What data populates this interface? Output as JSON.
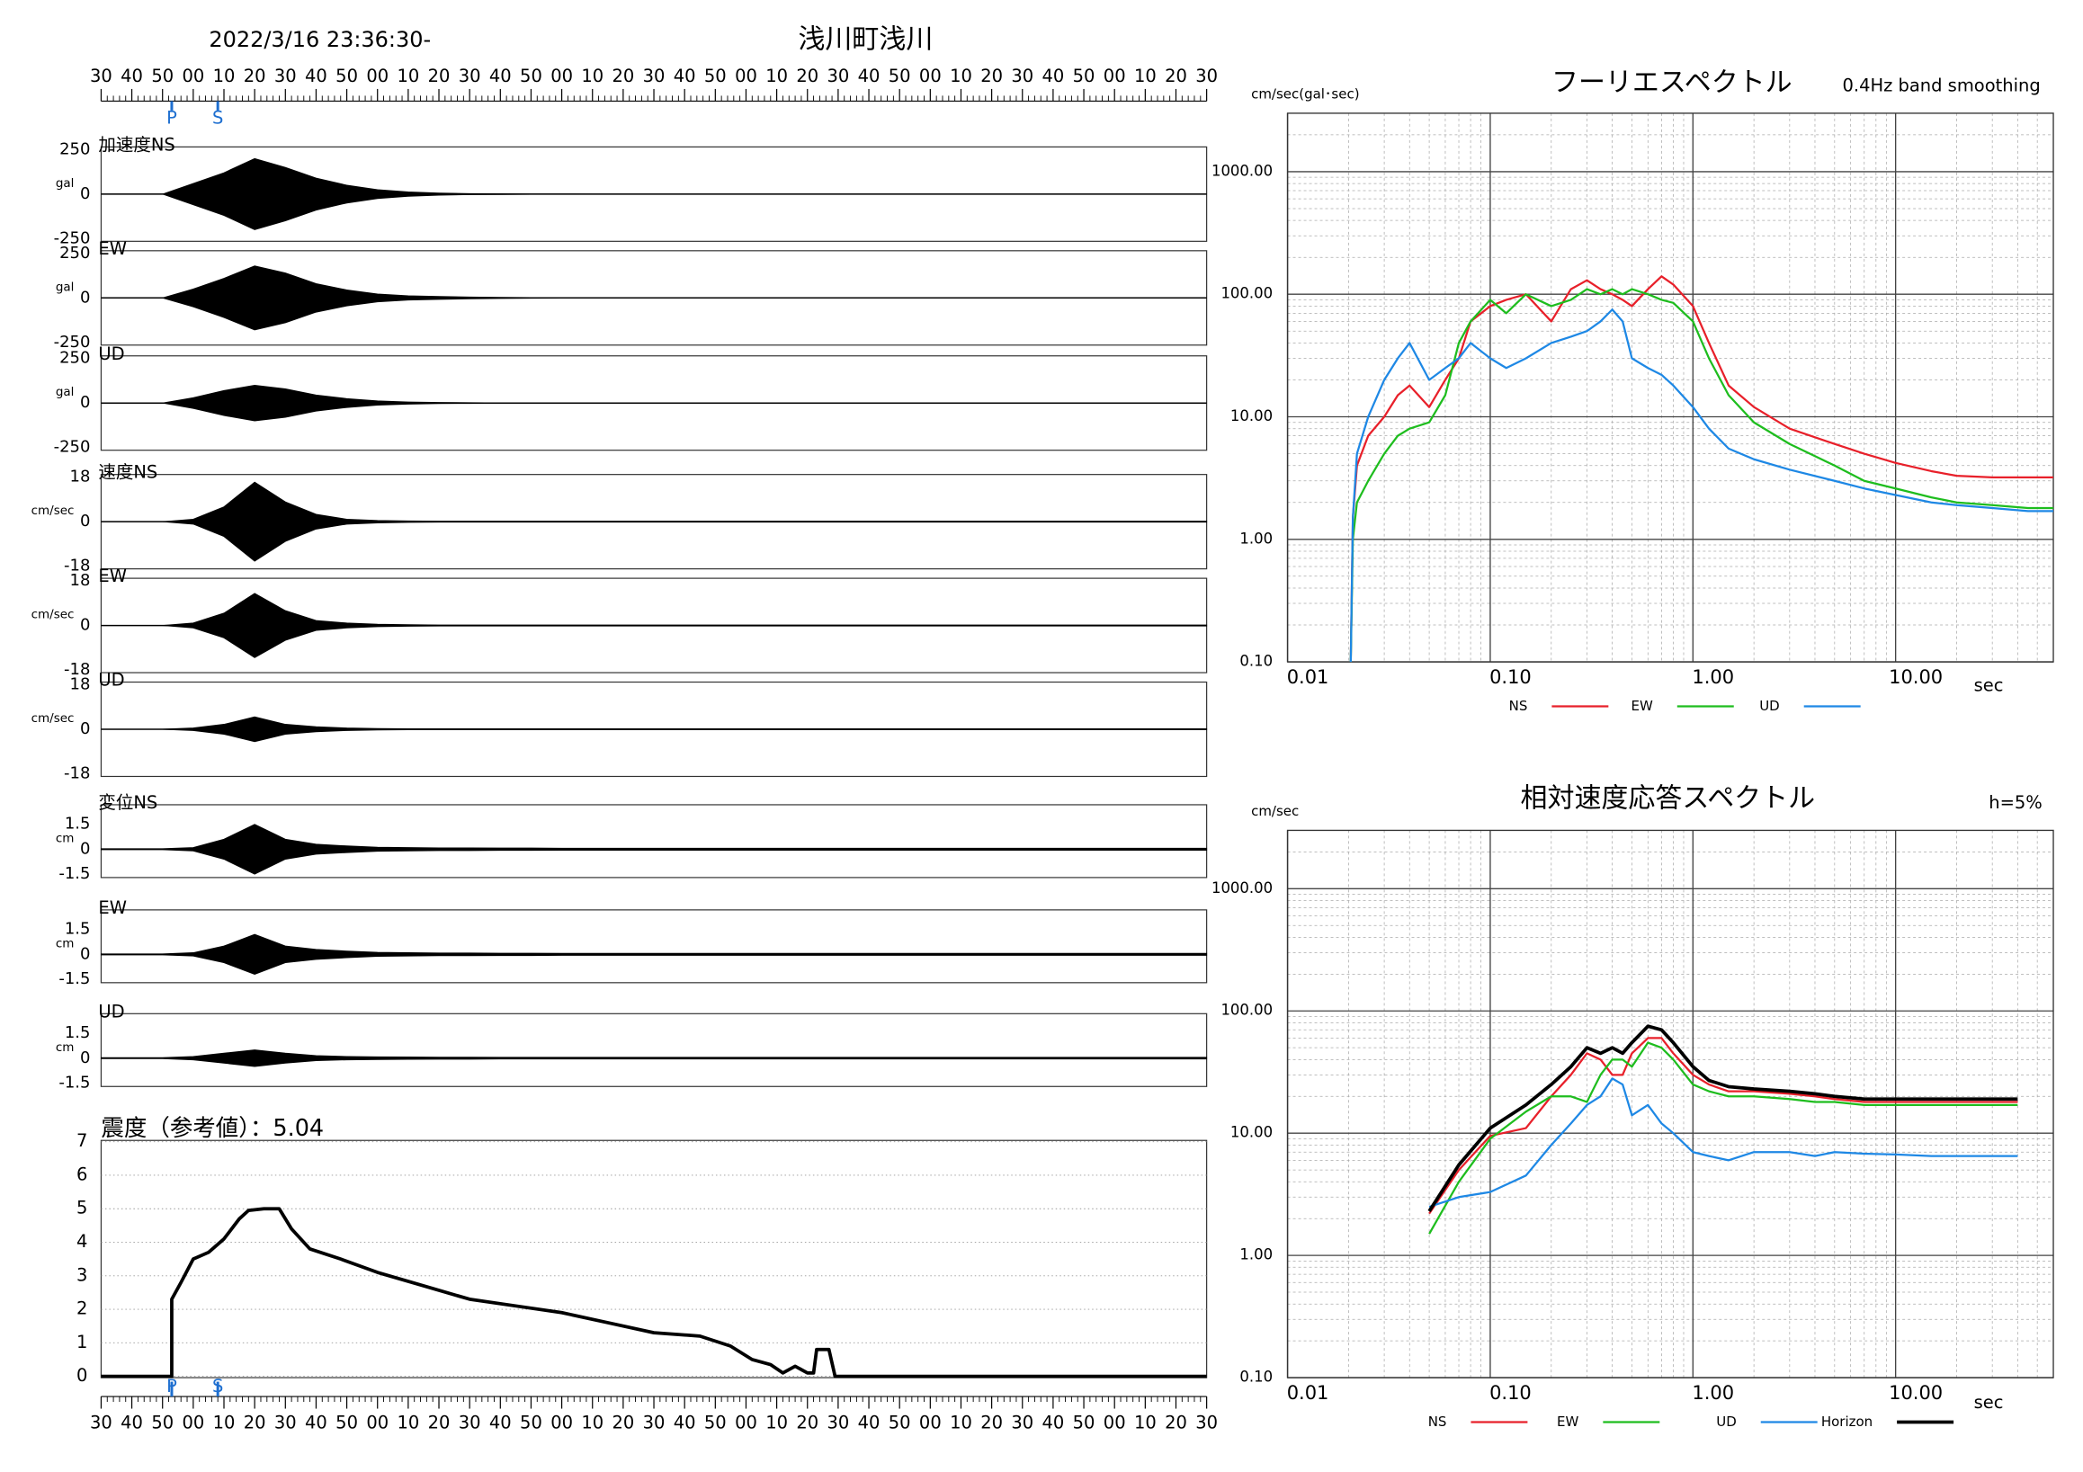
{
  "chart_data": [
    {
      "type": "waveform",
      "title": "2022/3/16 23:36:30-",
      "subtitle": "浅川町浅川",
      "xlim": [
        0,
        360
      ],
      "xticks": [
        {
          "value": 0,
          "label": "30"
        },
        {
          "value": 10,
          "label": "40"
        },
        {
          "value": 20,
          "label": "50"
        },
        {
          "value": 30,
          "label": "00"
        },
        {
          "value": 40,
          "label": "10"
        },
        {
          "value": 50,
          "label": "20"
        },
        {
          "value": 60,
          "label": "30"
        },
        {
          "value": 70,
          "label": "40"
        },
        {
          "value": 80,
          "label": "50"
        },
        {
          "value": 90,
          "label": "00"
        },
        {
          "value": 100,
          "label": "10"
        },
        {
          "value": 110,
          "label": "20"
        },
        {
          "value": 120,
          "label": "30"
        },
        {
          "value": 130,
          "label": "40"
        },
        {
          "value": 140,
          "label": "50"
        },
        {
          "value": 150,
          "label": "00"
        },
        {
          "value": 160,
          "label": "10"
        },
        {
          "value": 170,
          "label": "20"
        },
        {
          "value": 180,
          "label": "30"
        },
        {
          "value": 190,
          "label": "40"
        },
        {
          "value": 200,
          "label": "50"
        },
        {
          "value": 210,
          "label": "00"
        },
        {
          "value": 220,
          "label": "10"
        },
        {
          "value": 230,
          "label": "20"
        },
        {
          "value": 240,
          "label": "30"
        },
        {
          "value": 250,
          "label": "40"
        },
        {
          "value": 260,
          "label": "50"
        },
        {
          "value": 270,
          "label": "00"
        },
        {
          "value": 280,
          "label": "10"
        },
        {
          "value": 290,
          "label": "20"
        },
        {
          "value": 300,
          "label": "30"
        },
        {
          "value": 310,
          "label": "40"
        },
        {
          "value": 320,
          "label": "50"
        },
        {
          "value": 330,
          "label": "00"
        },
        {
          "value": 340,
          "label": "10"
        },
        {
          "value": 350,
          "label": "20"
        },
        {
          "value": 360,
          "label": "30"
        }
      ],
      "phases": [
        {
          "label": "P",
          "value": 23
        },
        {
          "label": "S",
          "value": 38
        }
      ],
      "x": [
        0,
        10,
        20,
        30,
        40,
        50,
        60,
        70,
        80,
        90,
        100,
        110,
        120,
        130,
        140,
        150,
        160,
        170,
        180,
        190,
        200,
        210,
        220,
        230,
        240,
        250,
        260,
        270,
        280,
        290,
        300,
        310,
        320,
        330,
        340,
        350,
        360
      ],
      "panels": [
        {
          "label": "加速度NS",
          "unit": "gal",
          "ylim": [
            -250,
            250
          ],
          "yticks": [
            -250,
            0,
            250
          ],
          "values": [
            0,
            0,
            0,
            60,
            120,
            200,
            150,
            90,
            50,
            25,
            12,
            6,
            3,
            2,
            1,
            1,
            0,
            0,
            0,
            0,
            0,
            0,
            0,
            0,
            0,
            0,
            0,
            0,
            0,
            0,
            0,
            0,
            0,
            0,
            0,
            0,
            0
          ]
        },
        {
          "label": "EW",
          "unit": "gal",
          "ylim": [
            -250,
            250
          ],
          "yticks": [
            -250,
            0,
            250
          ],
          "values": [
            0,
            0,
            0,
            50,
            110,
            180,
            140,
            80,
            45,
            22,
            12,
            8,
            5,
            3,
            2,
            1,
            1,
            0,
            0,
            0,
            0,
            0,
            0,
            0,
            0,
            0,
            0,
            0,
            0,
            0,
            0,
            0,
            0,
            0,
            0,
            0,
            0
          ]
        },
        {
          "label": "UD",
          "unit": "gal",
          "ylim": [
            -250,
            250
          ],
          "yticks": [
            -250,
            0,
            250
          ],
          "values": [
            0,
            0,
            0,
            30,
            70,
            100,
            80,
            45,
            25,
            12,
            6,
            3,
            2,
            1,
            0,
            0,
            0,
            0,
            0,
            0,
            0,
            0,
            0,
            0,
            0,
            0,
            0,
            0,
            0,
            0,
            0,
            0,
            0,
            0,
            0,
            0,
            0
          ]
        },
        {
          "label": "速度NS",
          "unit": "cm/sec",
          "ylim": [
            -18,
            18
          ],
          "yticks": [
            -18,
            0,
            18
          ],
          "values": [
            0,
            0,
            0,
            1,
            6,
            16,
            8,
            3,
            1,
            0.5,
            0.3,
            0.2,
            0.2,
            0.2,
            0.2,
            0.2,
            0.2,
            0.2,
            0.2,
            0.2,
            0.2,
            0.2,
            0.2,
            0.2,
            0.2,
            0.2,
            0.2,
            0.2,
            0.2,
            0.2,
            0.2,
            0.2,
            0.2,
            0.2,
            0.2,
            0.2,
            0.2
          ]
        },
        {
          "label": "EW",
          "unit": "cm/sec",
          "ylim": [
            -18,
            18
          ],
          "yticks": [
            -18,
            0,
            18
          ],
          "values": [
            0,
            0,
            0,
            1,
            5,
            13,
            6,
            2,
            1,
            0.5,
            0.3,
            0.2,
            0.2,
            0.2,
            0.2,
            0.2,
            0.2,
            0.2,
            0.2,
            0.2,
            0.2,
            0.2,
            0.2,
            0.2,
            0.2,
            0.2,
            0.2,
            0.2,
            0.2,
            0.2,
            0.2,
            0.2,
            0.2,
            0.2,
            0.2,
            0.2,
            0.2
          ]
        },
        {
          "label": "UD",
          "unit": "cm/sec",
          "ylim": [
            -18,
            18
          ],
          "yticks": [
            -18,
            0,
            18
          ],
          "values": [
            0,
            0,
            0,
            0.5,
            2,
            5,
            2,
            1,
            0.5,
            0.3,
            0.2,
            0.2,
            0.2,
            0.2,
            0.2,
            0.2,
            0.2,
            0.2,
            0.2,
            0.2,
            0.2,
            0.2,
            0.2,
            0.2,
            0.2,
            0.2,
            0.2,
            0.2,
            0.2,
            0.2,
            0.2,
            0.2,
            0.2,
            0.2,
            0.2,
            0.2,
            0.2
          ]
        },
        {
          "label": "変位NS",
          "unit": "cm",
          "ylim": [
            -1.5,
            1.5
          ],
          "yticks": [
            -1.5,
            0,
            1.5
          ],
          "values": [
            0.03,
            0.03,
            0.03,
            0.1,
            0.6,
            1.5,
            0.6,
            0.3,
            0.2,
            0.12,
            0.1,
            0.08,
            0.08,
            0.07,
            0.07,
            0.06,
            0.06,
            0.06,
            0.06,
            0.06,
            0.06,
            0.06,
            0.06,
            0.06,
            0.06,
            0.06,
            0.06,
            0.06,
            0.06,
            0.06,
            0.06,
            0.06,
            0.06,
            0.06,
            0.06,
            0.06,
            0.06
          ]
        },
        {
          "label": "EW",
          "unit": "cm",
          "ylim": [
            -1.5,
            1.5
          ],
          "yticks": [
            -1.5,
            0,
            1.5
          ],
          "values": [
            0.03,
            0.03,
            0.03,
            0.1,
            0.5,
            1.2,
            0.5,
            0.3,
            0.2,
            0.12,
            0.1,
            0.08,
            0.08,
            0.07,
            0.07,
            0.06,
            0.06,
            0.06,
            0.06,
            0.06,
            0.06,
            0.06,
            0.06,
            0.06,
            0.06,
            0.06,
            0.06,
            0.06,
            0.06,
            0.06,
            0.06,
            0.06,
            0.06,
            0.06,
            0.06,
            0.06,
            0.06
          ]
        },
        {
          "label": "UD",
          "unit": "cm",
          "ylim": [
            -1.5,
            1.5
          ],
          "yticks": [
            -1.5,
            0,
            1.5
          ],
          "values": [
            0.03,
            0.03,
            0.03,
            0.1,
            0.3,
            0.5,
            0.3,
            0.15,
            0.1,
            0.08,
            0.07,
            0.06,
            0.06,
            0.05,
            0.05,
            0.05,
            0.05,
            0.05,
            0.05,
            0.05,
            0.05,
            0.05,
            0.05,
            0.05,
            0.05,
            0.05,
            0.05,
            0.05,
            0.05,
            0.05,
            0.05,
            0.05,
            0.05,
            0.05,
            0.05,
            0.05,
            0.05
          ]
        }
      ]
    },
    {
      "type": "line",
      "title": "震度（参考値）：5.04",
      "xlim": [
        0,
        360
      ],
      "ylim": [
        0,
        7
      ],
      "yticks": [
        0,
        1,
        2,
        3,
        4,
        5,
        6,
        7
      ],
      "grid": true,
      "color": "#000000",
      "x": [
        0,
        23,
        23,
        26,
        30,
        35,
        40,
        45,
        48,
        53,
        58,
        62,
        68,
        78,
        90,
        105,
        120,
        135,
        150,
        165,
        180,
        195,
        205,
        212,
        218,
        222,
        226,
        230,
        232,
        233,
        237,
        239,
        360
      ],
      "values": [
        0,
        0,
        2.3,
        2.8,
        3.5,
        3.7,
        4.1,
        4.7,
        4.95,
        5.0,
        5.0,
        4.4,
        3.8,
        3.5,
        3.1,
        2.7,
        2.3,
        2.1,
        1.9,
        1.6,
        1.3,
        1.2,
        0.9,
        0.5,
        0.35,
        0.1,
        0.3,
        0.1,
        0.1,
        0.8,
        0.8,
        0,
        0
      ]
    },
    {
      "type": "line",
      "title": "フーリエスペクトル",
      "subtitle": "0.4Hz band smoothing",
      "y_label": "cm/sec(gal･sec)",
      "x_label": "sec",
      "log_x": true,
      "log_y": true,
      "grid": true,
      "minor_grid": true,
      "xlim": [
        0.01,
        60
      ],
      "ylim": [
        0.1,
        3000
      ],
      "xticks": [
        0.01,
        {
          "value": 0.1,
          "label": "0.10"
        },
        {
          "value": 1,
          "label": "1.00"
        },
        {
          "value": 10,
          "label": "10.00"
        }
      ],
      "yticks": [
        {
          "value": 0.1,
          "label": "0.10"
        },
        {
          "value": 1,
          "label": "1.00"
        },
        {
          "value": 10,
          "label": "10.00"
        },
        {
          "value": 100,
          "label": "100.00"
        },
        {
          "value": 1000,
          "label": "1000.00"
        }
      ],
      "x": [
        0.0205,
        0.021,
        0.022,
        0.025,
        0.03,
        0.035,
        0.04,
        0.05,
        0.06,
        0.07,
        0.08,
        0.1,
        0.12,
        0.15,
        0.2,
        0.25,
        0.3,
        0.35,
        0.4,
        0.45,
        0.5,
        0.6,
        0.7,
        0.8,
        1.0,
        1.2,
        1.5,
        2,
        3,
        5,
        7,
        10,
        15,
        20,
        30,
        45,
        60
      ],
      "series": [
        {
          "name": "NS",
          "color": "#e8202a",
          "values": [
            0.1,
            1.5,
            4,
            7,
            10,
            15,
            18,
            12,
            20,
            30,
            60,
            80,
            90,
            100,
            60,
            110,
            130,
            110,
            100,
            90,
            80,
            110,
            140,
            120,
            80,
            40,
            18,
            12,
            8,
            6,
            5,
            4.2,
            3.6,
            3.3,
            3.2,
            3.2,
            3.2
          ]
        },
        {
          "name": "EW",
          "color": "#1ebd1e",
          "values": [
            0.1,
            1,
            2,
            3,
            5,
            7,
            8,
            9,
            15,
            40,
            60,
            90,
            70,
            100,
            80,
            90,
            110,
            100,
            110,
            100,
            110,
            100,
            90,
            85,
            60,
            30,
            15,
            9,
            6,
            4,
            3,
            2.6,
            2.2,
            2,
            1.9,
            1.8,
            1.8
          ]
        },
        {
          "name": "UD",
          "color": "#1e88e5",
          "values": [
            0.1,
            1.5,
            5,
            10,
            20,
            30,
            40,
            20,
            25,
            30,
            40,
            30,
            25,
            30,
            40,
            45,
            50,
            60,
            75,
            60,
            30,
            25,
            22,
            18,
            12,
            8,
            5.5,
            4.5,
            3.7,
            3,
            2.6,
            2.3,
            2,
            1.9,
            1.8,
            1.7,
            1.7
          ]
        }
      ]
    },
    {
      "type": "line",
      "title": "相対速度応答スペクトル",
      "subtitle": "h=5%",
      "y_label": "cm/sec",
      "x_label": "sec",
      "log_x": true,
      "log_y": true,
      "grid": true,
      "minor_grid": true,
      "xlim": [
        0.01,
        60
      ],
      "ylim": [
        0.1,
        3000
      ],
      "xticks": [
        0.01,
        {
          "value": 0.1,
          "label": "0.10"
        },
        {
          "value": 1,
          "label": "1.00"
        },
        {
          "value": 10,
          "label": "10.00"
        }
      ],
      "yticks": [
        {
          "value": 0.1,
          "label": "0.10"
        },
        {
          "value": 1,
          "label": "1.00"
        },
        {
          "value": 10,
          "label": "10.00"
        },
        {
          "value": 100,
          "label": "100.00"
        },
        {
          "value": 1000,
          "label": "1000.00"
        }
      ],
      "x": [
        0.05,
        0.07,
        0.1,
        0.15,
        0.2,
        0.25,
        0.3,
        0.35,
        0.4,
        0.45,
        0.5,
        0.6,
        0.7,
        0.8,
        1.0,
        1.2,
        1.5,
        2,
        3,
        4,
        5,
        7,
        10,
        15,
        20,
        30,
        40
      ],
      "series": [
        {
          "name": "NS",
          "color": "#e8202a",
          "values": [
            2.2,
            5,
            9.5,
            11,
            20,
            30,
            45,
            40,
            30,
            30,
            45,
            60,
            60,
            45,
            30,
            25,
            22,
            22,
            21,
            20,
            19,
            18,
            18,
            18,
            18,
            18,
            18
          ]
        },
        {
          "name": "EW",
          "color": "#1ebd1e",
          "values": [
            1.5,
            4,
            9,
            15,
            20,
            20,
            18,
            30,
            40,
            40,
            35,
            55,
            50,
            40,
            25,
            22,
            20,
            20,
            19,
            18,
            18,
            17,
            17,
            17,
            17,
            17,
            17
          ]
        },
        {
          "name": "UD",
          "color": "#1e88e5",
          "values": [
            2.5,
            3,
            3.3,
            4.5,
            8,
            12,
            17,
            20,
            28,
            25,
            14,
            17,
            12,
            10,
            7,
            6.5,
            6,
            7,
            7,
            6.5,
            7,
            6.8,
            6.7,
            6.5,
            6.5,
            6.5,
            6.5
          ]
        },
        {
          "name": "Horizon",
          "color": "#000000",
          "values": [
            2.3,
            5.5,
            11,
            17,
            25,
            35,
            50,
            45,
            50,
            45,
            55,
            75,
            70,
            55,
            35,
            27,
            24,
            23,
            22,
            21,
            20,
            19,
            19,
            19,
            19,
            19,
            19
          ]
        }
      ]
    }
  ]
}
